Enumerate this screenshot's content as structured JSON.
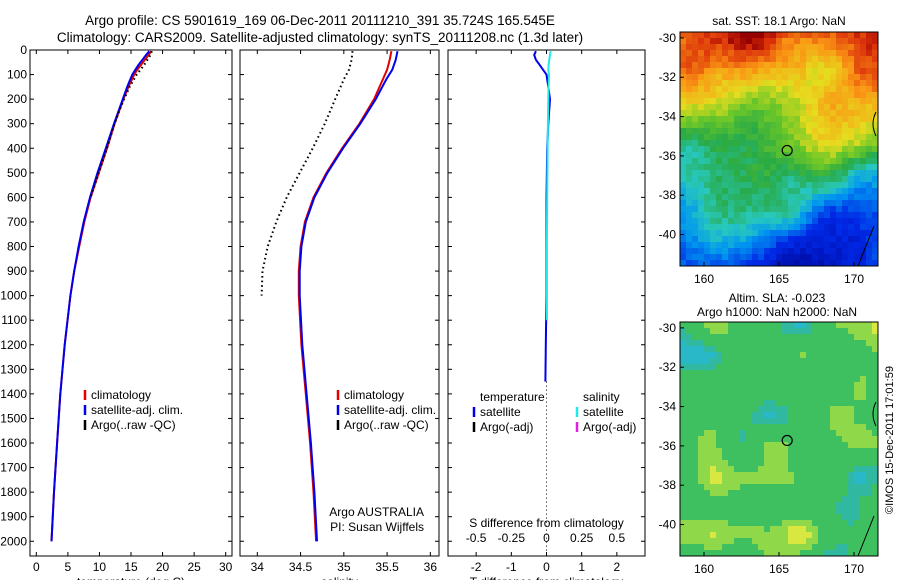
{
  "title": {
    "line1": "Argo profile: CS 5901619_169 06-Dec-2011 20111210_391 35.724S 165.545E",
    "line2": "Climatology: CARS2009. Satellite-adjusted climatology: synTS_20111208.nc (1.3d later)"
  },
  "colors": {
    "climatology": "#e00000",
    "satellite": "#0000ee",
    "argo": "#000000",
    "salinity_satellite": "#22e8e8",
    "salinity_argo": "#e020e0"
  },
  "chart_data": [
    {
      "type": "line",
      "id": "temperature",
      "xlabel": "temperature (deg C)",
      "ylabel": "",
      "xlim": [
        -1,
        31
      ],
      "ylim": [
        2060,
        0
      ],
      "xticks": [
        0,
        5,
        10,
        15,
        20,
        25,
        30
      ],
      "yticks": [
        0,
        100,
        200,
        300,
        400,
        500,
        600,
        700,
        800,
        900,
        1000,
        1100,
        1200,
        1300,
        1400,
        1500,
        1600,
        1700,
        1800,
        1900,
        2000
      ],
      "legend": [
        "climatology",
        "satellite-adj. clim.",
        "Argo(..raw -QC)"
      ],
      "series": [
        {
          "name": "climatology",
          "style": "solid",
          "depth": [
            5,
            20,
            40,
            60,
            80,
            100,
            150,
            200,
            250,
            300,
            400,
            500,
            600,
            700,
            800,
            900,
            1000,
            1200,
            1400,
            1600,
            1800,
            2000
          ],
          "values": [
            18.2,
            17.8,
            17.2,
            16.6,
            16.0,
            15.5,
            14.6,
            13.8,
            13.1,
            12.4,
            11.2,
            9.9,
            8.6,
            7.6,
            6.8,
            6.0,
            5.4,
            4.5,
            3.8,
            3.3,
            2.8,
            2.4
          ]
        },
        {
          "name": "satellite-adj. clim.",
          "style": "solid",
          "depth": [
            5,
            20,
            40,
            60,
            80,
            100,
            150,
            200,
            250,
            300,
            400,
            500,
            600,
            700,
            800,
            900,
            1000,
            1200,
            1400,
            1600,
            1800,
            2000
          ],
          "values": [
            17.9,
            17.4,
            16.8,
            16.2,
            15.7,
            15.2,
            14.4,
            13.7,
            13.0,
            12.3,
            11.0,
            9.7,
            8.5,
            7.5,
            6.7,
            6.0,
            5.4,
            4.5,
            3.8,
            3.3,
            2.8,
            2.4
          ]
        },
        {
          "name": "Argo(..raw -QC)",
          "style": "dotted",
          "depth": [
            5,
            20,
            40,
            60,
            80,
            100,
            150,
            200,
            250,
            300,
            400,
            500,
            600
          ],
          "values": [
            18.3,
            18.1,
            17.6,
            17.1,
            16.5,
            15.9,
            14.8,
            13.9,
            13.1,
            12.4,
            11.2,
            9.9,
            8.6
          ]
        }
      ]
    },
    {
      "type": "line",
      "id": "salinity",
      "xlabel": "salinity",
      "xlim": [
        33.8,
        36.1
      ],
      "ylim": [
        2060,
        0
      ],
      "xticks": [
        34,
        34.5,
        35,
        35.5,
        36
      ],
      "legend": [
        "climatology",
        "satellite-adj. clim.",
        "Argo(..raw -QC)"
      ],
      "annotation": [
        "Argo AUSTRALIA",
        "PI: Susan Wijffels"
      ],
      "series": [
        {
          "name": "climatology",
          "style": "solid",
          "depth": [
            5,
            40,
            80,
            120,
            200,
            300,
            400,
            500,
            600,
            700,
            800,
            900,
            1000,
            1200,
            1400,
            1600,
            1800,
            2000
          ],
          "values": [
            35.55,
            35.53,
            35.5,
            35.45,
            35.35,
            35.18,
            34.98,
            34.8,
            34.65,
            34.55,
            34.5,
            34.48,
            34.48,
            34.51,
            34.56,
            34.61,
            34.65,
            34.68
          ]
        },
        {
          "name": "satellite-adj. clim.",
          "style": "solid",
          "depth": [
            5,
            40,
            80,
            120,
            200,
            300,
            400,
            500,
            600,
            700,
            800,
            900,
            1000,
            1200,
            1400,
            1600,
            1800,
            2000
          ],
          "values": [
            35.62,
            35.6,
            35.56,
            35.49,
            35.37,
            35.19,
            34.99,
            34.81,
            34.66,
            34.56,
            34.51,
            34.49,
            34.49,
            34.52,
            34.57,
            34.62,
            34.66,
            34.69
          ]
        },
        {
          "name": "Argo(..raw -QC)",
          "style": "dotted",
          "depth": [
            5,
            40,
            80,
            120,
            200,
            300,
            400,
            500,
            600,
            700,
            800,
            900,
            1000
          ],
          "values": [
            35.1,
            35.09,
            35.06,
            35.0,
            34.9,
            34.78,
            34.64,
            34.49,
            34.34,
            34.22,
            34.12,
            34.06,
            34.05
          ]
        }
      ]
    },
    {
      "type": "line",
      "id": "difference",
      "xlabel": "T difference from climatology",
      "xlabel_top": "S difference from climatology",
      "xlim": [
        -2.8,
        2.8
      ],
      "ylim": [
        2060,
        0
      ],
      "xticks": [
        -2,
        -1,
        0,
        1,
        2
      ],
      "xticks_top": [
        -0.5,
        -0.25,
        0,
        0.25,
        0.5
      ],
      "legend_headers": [
        "temperature",
        "salinity"
      ],
      "legend": [
        "satellite",
        "Argo(-adj)",
        "satellite",
        "Argo(-adj)"
      ],
      "series": [
        {
          "name": "temperature satellite",
          "style": "solid",
          "depth": [
            5,
            20,
            40,
            60,
            80,
            100,
            150,
            200,
            300,
            400,
            600,
            800,
            1000,
            1200,
            1350
          ],
          "values": [
            -0.3,
            -0.35,
            -0.3,
            -0.2,
            -0.1,
            0.0,
            0.05,
            0.1,
            0.05,
            0.02,
            0.0,
            0.0,
            0.0,
            -0.02,
            -0.03
          ]
        },
        {
          "name": "salinity satellite",
          "style": "solid",
          "depth": [
            5,
            20,
            40,
            60,
            80,
            100,
            150,
            200,
            300,
            400,
            600,
            800,
            1000,
            1100
          ],
          "values": [
            0.12,
            0.1,
            0.08,
            0.06,
            0.05,
            0.07,
            0.06,
            0.05,
            0.04,
            0.03,
            0.02,
            0.01,
            0.01,
            0.01
          ]
        }
      ]
    },
    {
      "type": "heatmap",
      "id": "sst-map",
      "title": "sat. SST: 18.1  Argo: NaN",
      "xlim": [
        158.4,
        171.6
      ],
      "ylim": [
        -41.6,
        -29.7
      ],
      "xticks": [
        160,
        165,
        170
      ],
      "yticks": [
        -30,
        -32,
        -34,
        -36,
        -38,
        -40
      ],
      "marker": {
        "lon": 165.545,
        "lat": -35.724
      }
    },
    {
      "type": "heatmap",
      "id": "sla-map",
      "title": "Altim. SLA: -0.023",
      "subtitle": "Argo h1000: NaN h2000: NaN",
      "xlim": [
        158.4,
        171.6
      ],
      "ylim": [
        -41.6,
        -29.7
      ],
      "xticks": [
        160,
        165,
        170
      ],
      "yticks": [
        -30,
        -32,
        -34,
        -36,
        -38,
        -40
      ],
      "marker": {
        "lon": 165.545,
        "lat": -35.724
      }
    }
  ],
  "credit": "©IMOS 15-Dec-2011 17:01:59"
}
